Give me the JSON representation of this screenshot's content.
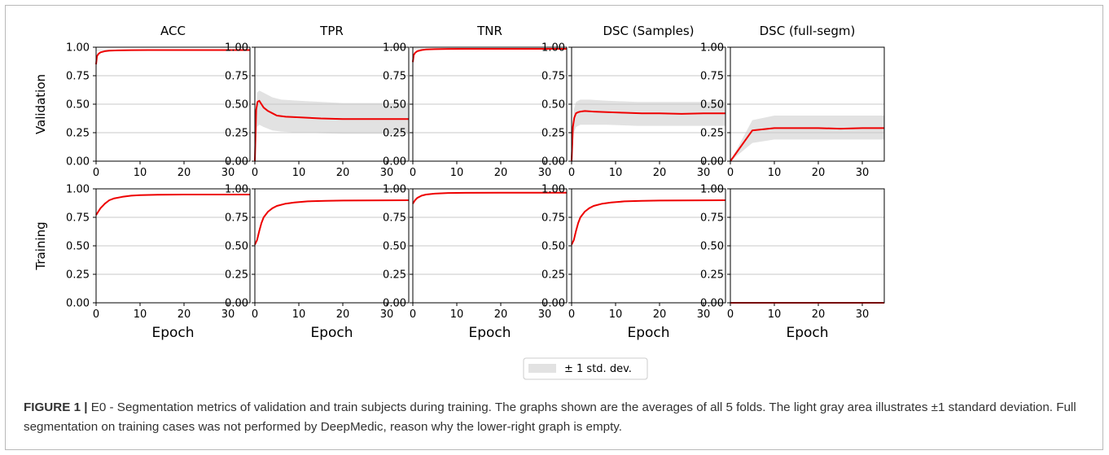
{
  "figure": {
    "column_titles": [
      "ACC",
      "TPR",
      "TNR",
      "DSC (Samples)",
      "DSC (full-segm)"
    ],
    "row_labels": [
      "Validation",
      "Training"
    ],
    "xlabel": "Epoch",
    "legend_label": "± 1 std. dev."
  },
  "caption": {
    "label": "FIGURE 1 |",
    "text": " E0 - Segmentation metrics of validation and train subjects during training. The graphs shown are the averages of all 5 folds. The light gray area illustrates ±1 standard deviation. Full segmentation on training cases was not performed by DeepMedic, reason why the lower-right graph is empty."
  },
  "colors": {
    "line": "#ee0000",
    "band": "#e2e2e2",
    "grid": "#c8c8c8",
    "axis": "#000000"
  },
  "chart_data": [
    {
      "type": "line",
      "title": "ACC",
      "ylabel": "Validation",
      "xlabel": "",
      "xlim": [
        0,
        35
      ],
      "ylim": [
        0,
        1
      ],
      "xticks": [
        "0",
        "10",
        "20",
        "30"
      ],
      "yticks": [
        "0.00",
        "0.25",
        "0.50",
        "0.75",
        "1.00"
      ],
      "grid": "y",
      "series": [
        {
          "x": [
            0,
            0.2,
            0.5,
            1,
            2,
            3,
            5,
            8,
            12,
            20,
            35
          ],
          "y": [
            0.85,
            0.92,
            0.94,
            0.955,
            0.965,
            0.97,
            0.972,
            0.974,
            0.975,
            0.975,
            0.975
          ]
        }
      ],
      "band": {
        "x": [
          0,
          35
        ],
        "lower": [
          0.97,
          0.97
        ],
        "upper": [
          0.98,
          0.98
        ]
      }
    },
    {
      "type": "line",
      "title": "TPR",
      "ylabel": "",
      "xlabel": "",
      "xlim": [
        0,
        35
      ],
      "ylim": [
        0,
        1
      ],
      "xticks": [
        "0",
        "10",
        "20",
        "30"
      ],
      "yticks": [
        "0.00",
        "0.25",
        "0.50",
        "0.75",
        "1.00"
      ],
      "grid": "y",
      "series": [
        {
          "x": [
            0,
            0.3,
            0.6,
            1,
            1.5,
            2,
            3,
            4,
            5,
            7,
            10,
            15,
            20,
            25,
            30,
            35
          ],
          "y": [
            0,
            0.45,
            0.52,
            0.53,
            0.5,
            0.47,
            0.44,
            0.42,
            0.4,
            0.39,
            0.385,
            0.375,
            0.37,
            0.37,
            0.37,
            0.37
          ]
        }
      ],
      "band": {
        "x": [
          0,
          0.5,
          1,
          2,
          4,
          6,
          10,
          20,
          35
        ],
        "lower": [
          0,
          0.3,
          0.32,
          0.3,
          0.27,
          0.26,
          0.25,
          0.24,
          0.24
        ],
        "upper": [
          0,
          0.6,
          0.62,
          0.6,
          0.56,
          0.54,
          0.53,
          0.51,
          0.51
        ]
      }
    },
    {
      "type": "line",
      "title": "TNR",
      "ylabel": "",
      "xlabel": "",
      "xlim": [
        0,
        35
      ],
      "ylim": [
        0,
        1
      ],
      "xticks": [
        "0",
        "10",
        "20",
        "30"
      ],
      "yticks": [
        "0.00",
        "0.25",
        "0.50",
        "0.75",
        "1.00"
      ],
      "grid": "y",
      "series": [
        {
          "x": [
            0,
            0.2,
            0.5,
            1,
            2,
            3,
            5,
            8,
            12,
            20,
            35
          ],
          "y": [
            0.87,
            0.93,
            0.95,
            0.965,
            0.975,
            0.98,
            0.983,
            0.985,
            0.986,
            0.986,
            0.986
          ]
        }
      ],
      "band": {
        "x": [
          0,
          35
        ],
        "lower": [
          0.98,
          0.98
        ],
        "upper": [
          0.99,
          0.99
        ]
      }
    },
    {
      "type": "line",
      "title": "DSC (Samples)",
      "ylabel": "",
      "xlabel": "",
      "xlim": [
        0,
        35
      ],
      "ylim": [
        0,
        1
      ],
      "xticks": [
        "0",
        "10",
        "20",
        "30"
      ],
      "yticks": [
        "0.00",
        "0.25",
        "0.50",
        "0.75",
        "1.00"
      ],
      "grid": "y",
      "series": [
        {
          "x": [
            0,
            0.3,
            0.6,
            1,
            1.5,
            2,
            3,
            5,
            8,
            12,
            16,
            20,
            25,
            30,
            35
          ],
          "y": [
            0,
            0.3,
            0.38,
            0.42,
            0.43,
            0.435,
            0.44,
            0.435,
            0.43,
            0.425,
            0.42,
            0.42,
            0.415,
            0.42,
            0.42
          ]
        }
      ],
      "band": {
        "x": [
          0,
          0.5,
          1,
          2,
          4,
          8,
          15,
          25,
          35
        ],
        "lower": [
          0,
          0.25,
          0.3,
          0.32,
          0.32,
          0.32,
          0.31,
          0.31,
          0.31
        ],
        "upper": [
          0,
          0.45,
          0.52,
          0.54,
          0.54,
          0.53,
          0.52,
          0.52,
          0.52
        ]
      }
    },
    {
      "type": "line",
      "title": "DSC (full-segm)",
      "ylabel": "",
      "xlabel": "",
      "xlim": [
        0,
        35
      ],
      "ylim": [
        0,
        1
      ],
      "xticks": [
        "0",
        "10",
        "20",
        "30"
      ],
      "yticks": [
        "0.00",
        "0.25",
        "0.50",
        "0.75",
        "1.00"
      ],
      "grid": "y",
      "series": [
        {
          "x": [
            0,
            5,
            10,
            15,
            20,
            25,
            30,
            35
          ],
          "y": [
            0,
            0.27,
            0.29,
            0.29,
            0.29,
            0.285,
            0.29,
            0.29
          ]
        }
      ],
      "band": {
        "x": [
          0,
          5,
          10,
          15,
          20,
          25,
          30,
          35
        ],
        "lower": [
          0,
          0.16,
          0.19,
          0.19,
          0.19,
          0.19,
          0.19,
          0.19
        ],
        "upper": [
          0,
          0.36,
          0.4,
          0.4,
          0.4,
          0.4,
          0.4,
          0.4
        ]
      }
    },
    {
      "type": "line",
      "title": "",
      "ylabel": "Training",
      "xlabel": "Epoch",
      "xlim": [
        0,
        35
      ],
      "ylim": [
        0,
        1
      ],
      "xticks": [
        "0",
        "10",
        "20",
        "30"
      ],
      "yticks": [
        "0.00",
        "0.25",
        "0.50",
        "0.75",
        "1.00"
      ],
      "grid": "y",
      "series": [
        {
          "x": [
            0,
            0.5,
            1,
            2,
            3,
            4,
            6,
            8,
            10,
            14,
            20,
            35
          ],
          "y": [
            0.77,
            0.8,
            0.83,
            0.87,
            0.9,
            0.915,
            0.93,
            0.94,
            0.945,
            0.948,
            0.95,
            0.95
          ]
        }
      ]
    },
    {
      "type": "line",
      "title": "",
      "ylabel": "",
      "xlabel": "Epoch",
      "xlim": [
        0,
        35
      ],
      "ylim": [
        0,
        1
      ],
      "xticks": [
        "0",
        "10",
        "20",
        "30"
      ],
      "yticks": [
        "0.00",
        "0.25",
        "0.50",
        "0.75",
        "1.00"
      ],
      "grid": "y",
      "series": [
        {
          "x": [
            0,
            0.5,
            1,
            1.5,
            2,
            3,
            4,
            5,
            7,
            9,
            12,
            16,
            20,
            35
          ],
          "y": [
            0.51,
            0.55,
            0.63,
            0.7,
            0.75,
            0.8,
            0.83,
            0.85,
            0.87,
            0.88,
            0.89,
            0.895,
            0.897,
            0.9
          ]
        }
      ]
    },
    {
      "type": "line",
      "title": "",
      "ylabel": "",
      "xlabel": "Epoch",
      "xlim": [
        0,
        35
      ],
      "ylim": [
        0,
        1
      ],
      "xticks": [
        "0",
        "10",
        "20",
        "30"
      ],
      "yticks": [
        "0.00",
        "0.25",
        "0.50",
        "0.75",
        "1.00"
      ],
      "grid": "y",
      "series": [
        {
          "x": [
            0,
            0.5,
            1,
            2,
            3,
            5,
            8,
            12,
            20,
            35
          ],
          "y": [
            0.87,
            0.9,
            0.92,
            0.94,
            0.95,
            0.958,
            0.963,
            0.965,
            0.966,
            0.966
          ]
        }
      ]
    },
    {
      "type": "line",
      "title": "",
      "ylabel": "",
      "xlabel": "Epoch",
      "xlim": [
        0,
        35
      ],
      "ylim": [
        0,
        1
      ],
      "xticks": [
        "0",
        "10",
        "20",
        "30"
      ],
      "yticks": [
        "0.00",
        "0.25",
        "0.50",
        "0.75",
        "1.00"
      ],
      "grid": "y",
      "series": [
        {
          "x": [
            0,
            0.5,
            1,
            1.5,
            2,
            3,
            4,
            5,
            7,
            9,
            12,
            16,
            20,
            35
          ],
          "y": [
            0.51,
            0.55,
            0.63,
            0.7,
            0.75,
            0.8,
            0.83,
            0.85,
            0.87,
            0.88,
            0.89,
            0.895,
            0.897,
            0.9
          ]
        }
      ]
    },
    {
      "type": "line",
      "title": "",
      "ylabel": "",
      "xlabel": "Epoch",
      "xlim": [
        0,
        35
      ],
      "ylim": [
        0,
        1
      ],
      "xticks": [
        "0",
        "10",
        "20",
        "30"
      ],
      "yticks": [
        "0.00",
        "0.25",
        "0.50",
        "0.75",
        "1.00"
      ],
      "grid": "y",
      "series": [
        {
          "x": [
            0,
            35
          ],
          "y": [
            0,
            0
          ]
        }
      ]
    }
  ]
}
